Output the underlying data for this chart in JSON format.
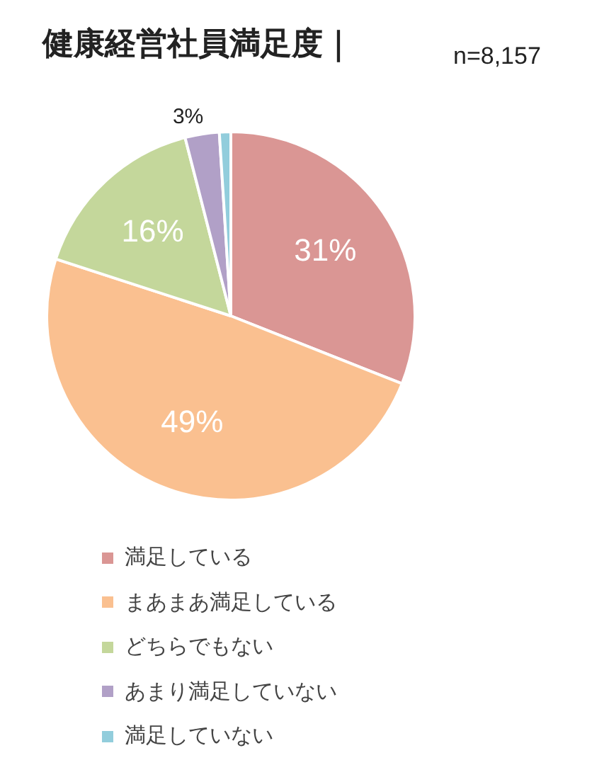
{
  "chart_data": {
    "type": "pie",
    "title": "健康経営社員満足度｜",
    "annotations": [
      "n=8,157"
    ],
    "categories": [
      "満足している",
      "まあまあ満足している",
      "どちらでもない",
      "あまり満足していない",
      "満足していない"
    ],
    "values": [
      31,
      49,
      16,
      3,
      1
    ],
    "value_labels": [
      "31%",
      "49%",
      "16%",
      "3%",
      null
    ],
    "colors": [
      "#da9694",
      "#fac090",
      "#c4d79b",
      "#b1a0c7",
      "#92cddc"
    ],
    "legend": "bottom"
  }
}
